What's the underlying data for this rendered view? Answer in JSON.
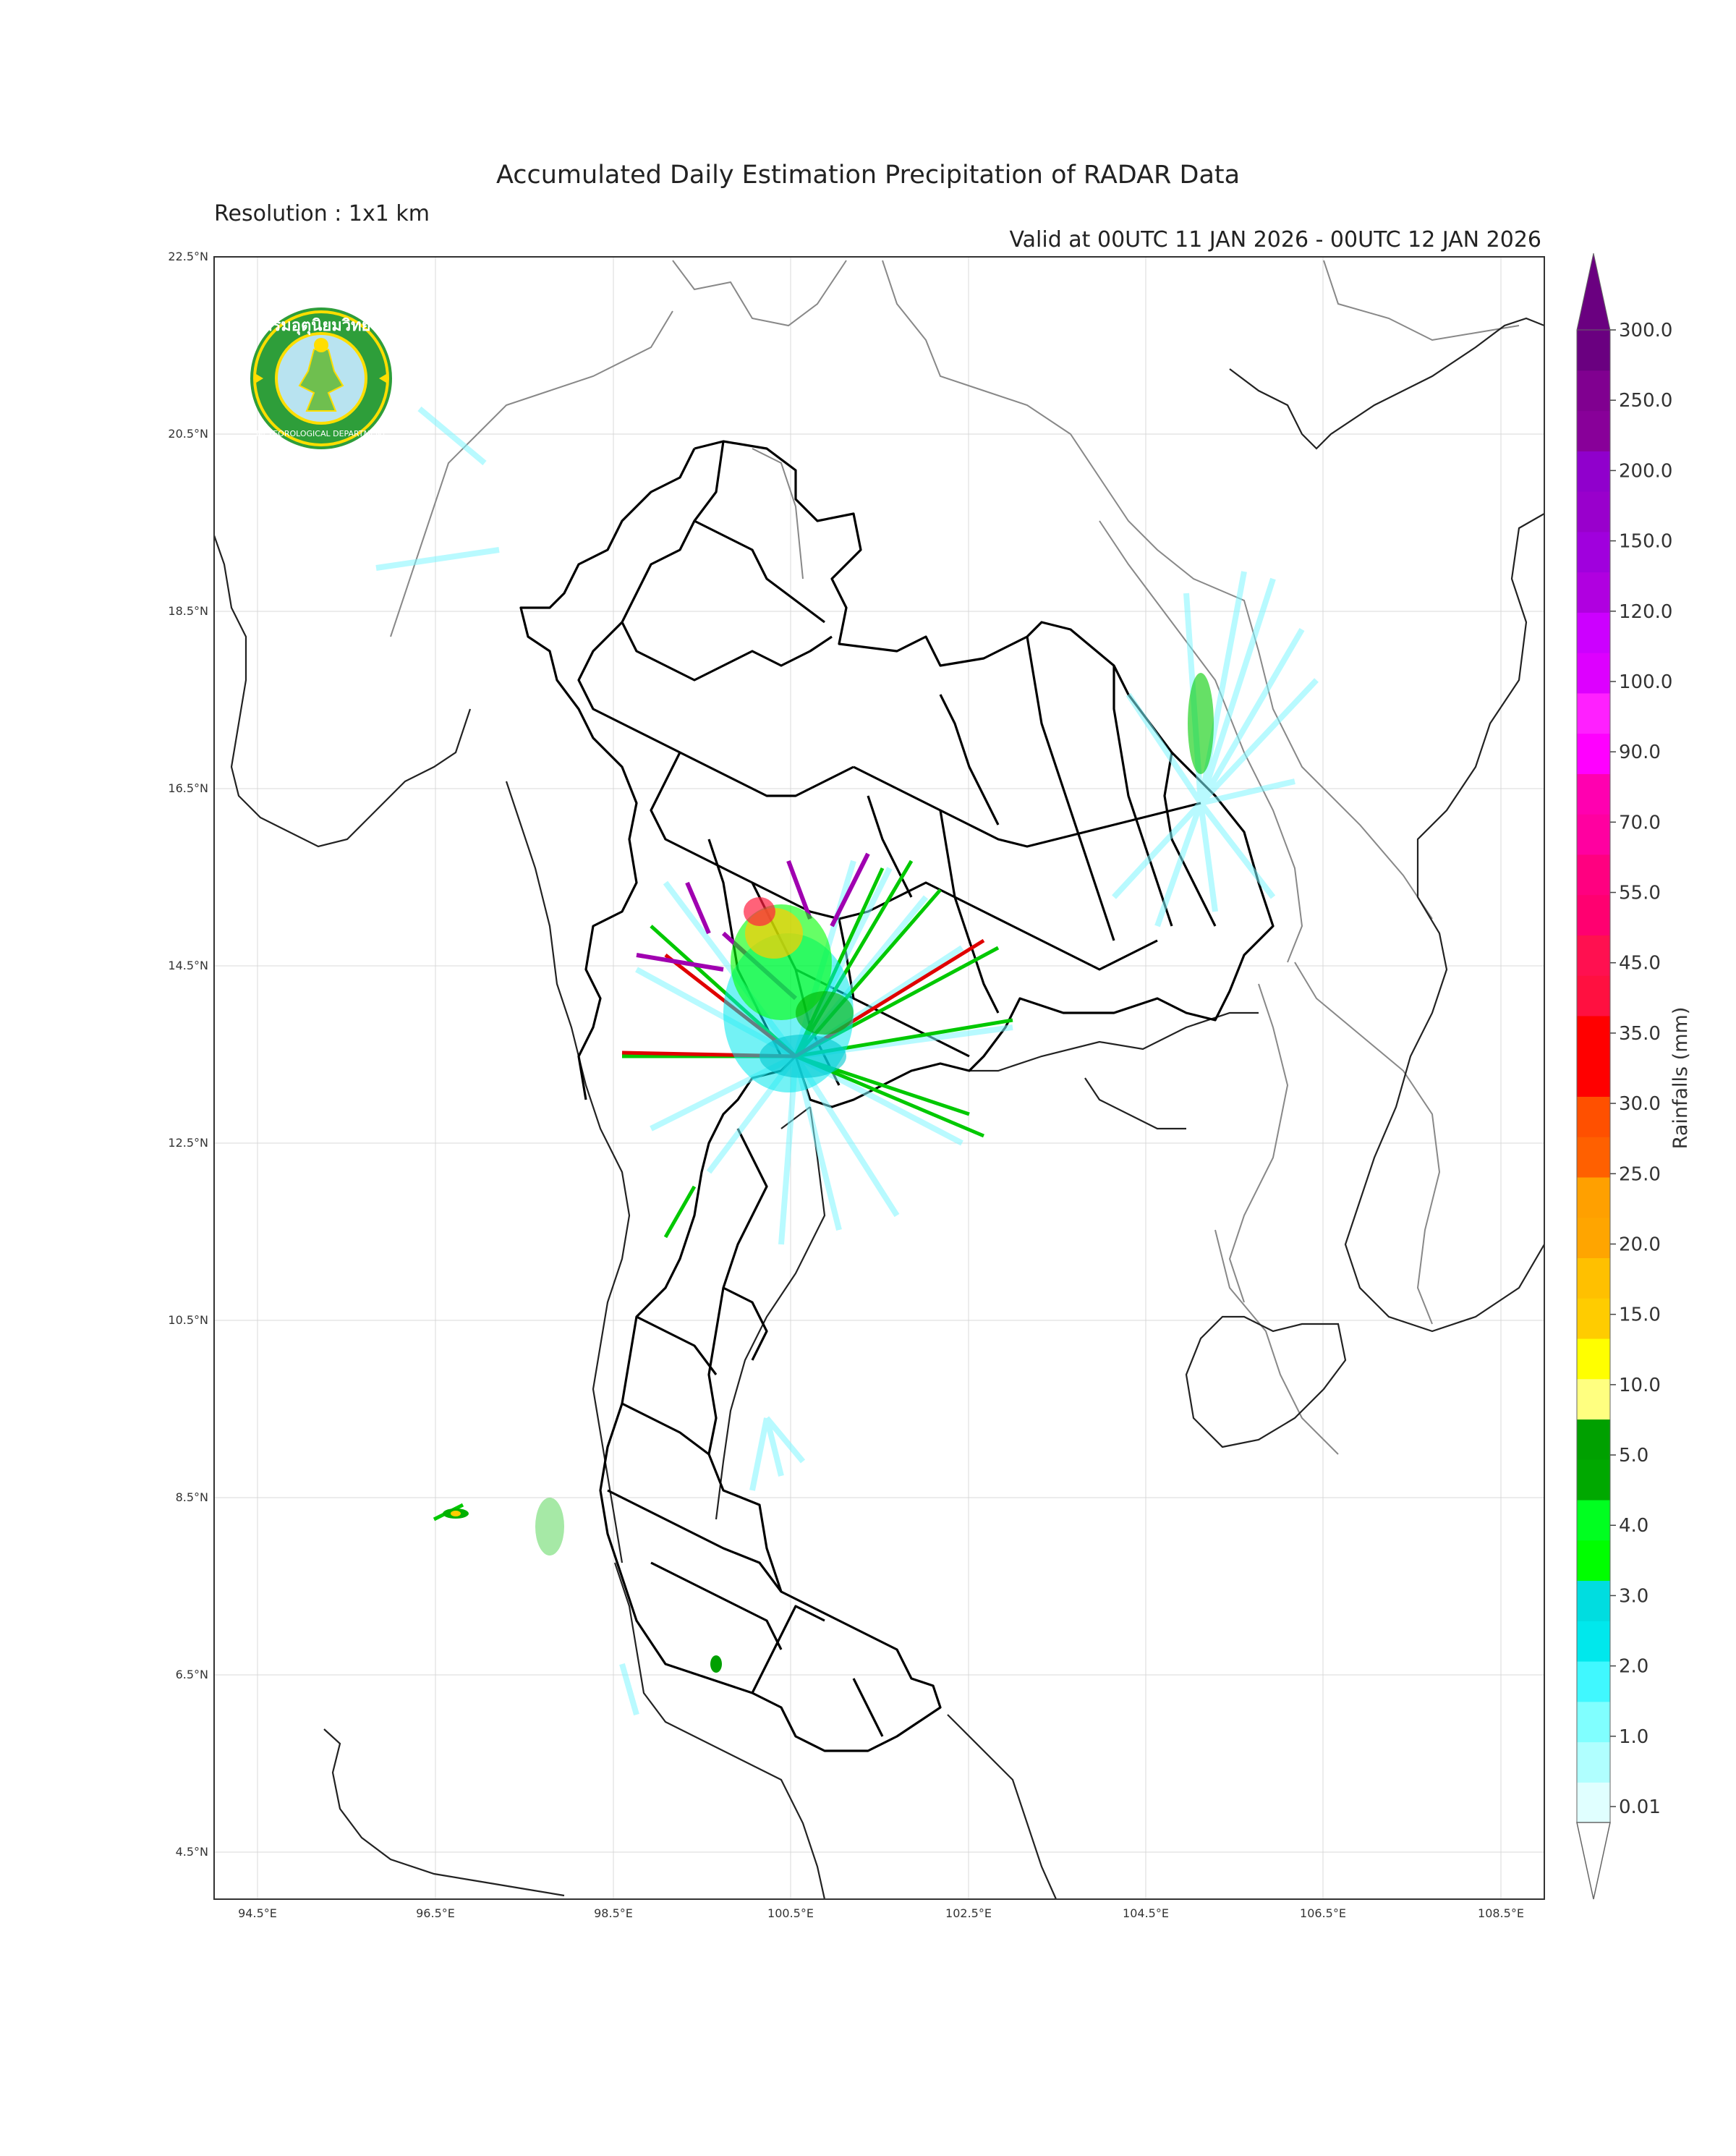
{
  "header": {
    "title": "Accumulated Daily Estimation Precipitation of RADAR Data",
    "resolution": "Resolution : 1x1 km",
    "valid": "Valid at 00UTC 11 JAN 2026 - 00UTC 12 JAN 2026"
  },
  "axes": {
    "lat_labels": [
      "22.5°N",
      "20.5°N",
      "18.5°N",
      "16.5°N",
      "14.5°N",
      "12.5°N",
      "10.5°N",
      "8.5°N",
      "6.5°N",
      "4.5°N"
    ],
    "lon_labels": [
      "94.5°E",
      "96.5°E",
      "98.5°E",
      "100.5°E",
      "102.5°E",
      "104.5°E",
      "106.5°E",
      "108.5°E"
    ]
  },
  "logo": {
    "text_top": "กรมอุตุนิยมวิทยา",
    "text_bottom": "METEOROLOGICAL DEPARTMENT"
  },
  "colorbar": {
    "label": "Rainfalls (mm)",
    "ticks": [
      "0.01",
      "1.0",
      "2.0",
      "3.0",
      "4.0",
      "5.0",
      "10.0",
      "15.0",
      "20.0",
      "25.0",
      "30.0",
      "35.0",
      "45.0",
      "55.0",
      "70.0",
      "90.0",
      "100.0",
      "120.0",
      "150.0",
      "200.0",
      "250.0",
      "300.0"
    ],
    "colors": [
      "#e0ffff",
      "#b0ffff",
      "#80ffff",
      "#40f8ff",
      "#00e8ec",
      "#00dde0",
      "#00ff00",
      "#00ff20",
      "#00a800",
      "#00a000",
      "#ffff80",
      "#ffff00",
      "#ffcc00",
      "#ffc000",
      "#ffa500",
      "#ffa000",
      "#ff6000",
      "#ff5000",
      "#ff0000",
      "#ff0000",
      "#ff1040",
      "#ff1050",
      "#ff0070",
      "#ff0080",
      "#ff00a0",
      "#ff00b0",
      "#ff00ff",
      "#ff20ff",
      "#dd00ff",
      "#cc00ff",
      "#b000e0",
      "#a000dd",
      "#9900cc",
      "#9000cc",
      "#880099",
      "#800090",
      "#6a0080"
    ]
  }
}
